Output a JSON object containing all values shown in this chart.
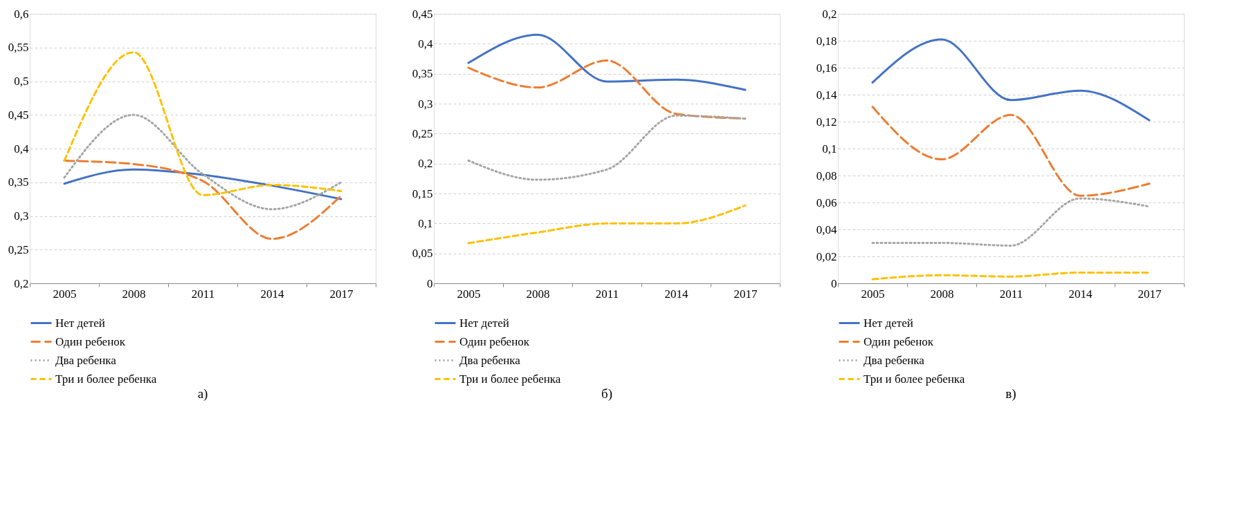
{
  "chart_data": [
    {
      "type": "line",
      "title": "а)",
      "categories": [
        "2005",
        "2008",
        "2011",
        "2014",
        "2017"
      ],
      "ylim": [
        0.2,
        0.6
      ],
      "yticks": [
        {
          "value": 0.2,
          "label": "0,2"
        },
        {
          "value": 0.25,
          "label": "0,25"
        },
        {
          "value": 0.3,
          "label": "0,3"
        },
        {
          "value": 0.35,
          "label": "0,35"
        },
        {
          "value": 0.4,
          "label": "0,4"
        },
        {
          "value": 0.45,
          "label": "0,45"
        },
        {
          "value": 0.5,
          "label": "0,5"
        },
        {
          "value": 0.55,
          "label": "0,55"
        },
        {
          "value": 0.6,
          "label": "0,6"
        }
      ],
      "grid": "y",
      "legend": "bottom",
      "series": [
        {
          "name": "Нет детей",
          "color": "#4472c4",
          "line_style": "solid",
          "values": [
            0.348,
            0.369,
            0.361,
            0.345,
            0.325
          ]
        },
        {
          "name": "Один ребенок",
          "color": "#ed7d31",
          "line_style": "longdash",
          "values": [
            0.382,
            0.377,
            0.352,
            0.266,
            0.33
          ]
        },
        {
          "name": "Два ребенка",
          "color": "#a5a5a5",
          "line_style": "dotted",
          "values": [
            0.357,
            0.45,
            0.362,
            0.31,
            0.35
          ]
        },
        {
          "name": "Три и более ребенка",
          "color": "#ffc000",
          "line_style": "dashed",
          "values": [
            0.382,
            0.543,
            0.331,
            0.346,
            0.337
          ]
        }
      ]
    },
    {
      "type": "line",
      "title": "б)",
      "categories": [
        "2005",
        "2008",
        "2011",
        "2014",
        "2017"
      ],
      "ylim": [
        0,
        0.45
      ],
      "yticks": [
        0,
        {
          "value": 0.05,
          "label": "0,05"
        },
        {
          "value": 0.1,
          "label": "0,1"
        },
        {
          "value": 0.15,
          "label": "0,15"
        },
        {
          "value": 0.2,
          "label": "0,2"
        },
        {
          "value": 0.25,
          "label": "0,25"
        },
        {
          "value": 0.3,
          "label": "0,3"
        },
        {
          "value": 0.35,
          "label": "0,35"
        },
        {
          "value": 0.4,
          "label": "0,4"
        },
        {
          "value": 0.45,
          "label": "0,45"
        }
      ],
      "grid": "y",
      "legend": "bottom",
      "series": [
        {
          "name": "Нет детей",
          "color": "#4472c4",
          "line_style": "solid",
          "values": [
            0.368,
            0.415,
            0.337,
            0.34,
            0.323
          ]
        },
        {
          "name": "Один ребенок",
          "color": "#ed7d31",
          "line_style": "longdash",
          "values": [
            0.36,
            0.327,
            0.372,
            0.283,
            0.275
          ]
        },
        {
          "name": "Два ребенка",
          "color": "#a5a5a5",
          "line_style": "dotted",
          "values": [
            0.205,
            0.173,
            0.19,
            0.28,
            0.275
          ]
        },
        {
          "name": "Три и более ребенка",
          "color": "#ffc000",
          "line_style": "dashed",
          "values": [
            0.067,
            0.085,
            0.1,
            0.1,
            0.13
          ]
        }
      ]
    },
    {
      "type": "line",
      "title": "в)",
      "categories": [
        "2005",
        "2008",
        "2011",
        "2014",
        "2017"
      ],
      "ylim": [
        0,
        0.2
      ],
      "yticks": [
        0,
        {
          "value": 0.02,
          "label": "0,02"
        },
        {
          "value": 0.04,
          "label": "0,04"
        },
        {
          "value": 0.06,
          "label": "0,06"
        },
        {
          "value": 0.08,
          "label": "0,08"
        },
        {
          "value": 0.1,
          "label": "0,1"
        },
        {
          "value": 0.12,
          "label": "0,12"
        },
        {
          "value": 0.14,
          "label": "0,14"
        },
        {
          "value": 0.16,
          "label": "0,16"
        },
        {
          "value": 0.18,
          "label": "0,18"
        },
        {
          "value": 0.2,
          "label": "0,2"
        }
      ],
      "grid": "y",
      "legend": "bottom",
      "series": [
        {
          "name": "Нет детей",
          "color": "#4472c4",
          "line_style": "solid",
          "values": [
            0.149,
            0.181,
            0.136,
            0.143,
            0.121
          ]
        },
        {
          "name": "Один ребенок",
          "color": "#ed7d31",
          "line_style": "longdash",
          "values": [
            0.131,
            0.092,
            0.125,
            0.065,
            0.074
          ]
        },
        {
          "name": "Два ребенка",
          "color": "#a5a5a5",
          "line_style": "dotted",
          "values": [
            0.03,
            0.03,
            0.028,
            0.063,
            0.057
          ]
        },
        {
          "name": "Три и более ребенка",
          "color": "#ffc000",
          "line_style": "dashed",
          "values": [
            0.003,
            0.006,
            0.005,
            0.008,
            0.008
          ]
        }
      ]
    }
  ]
}
